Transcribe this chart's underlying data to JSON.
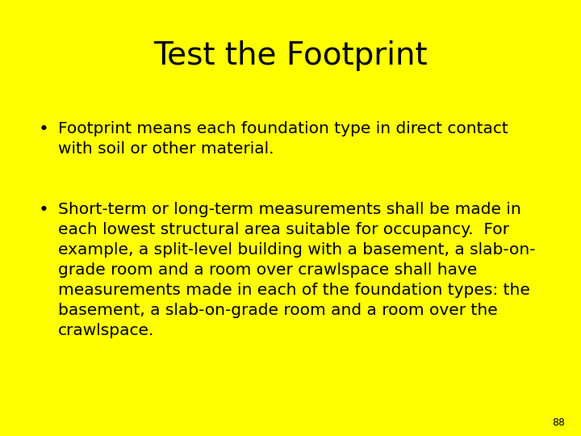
{
  "title": "Test the Footprint",
  "background_color": "#FFFF00",
  "text_color": "#000000",
  "title_fontsize": 28,
  "body_fontsize": 14.5,
  "page_number": "88",
  "bullet1_line1": "Footprint means each foundation type in direct contact",
  "bullet1_line2": "with soil or other material.",
  "bullet2_line1": "Short-term or long-term measurements shall be made in",
  "bullet2_line2": "each lowest structural area suitable for occupancy.  For",
  "bullet2_line3": "example, a split-level building with a basement, a slab-on-",
  "bullet2_line4": "grade room and a room over crawlspace shall have",
  "bullet2_line5": "measurements made in each of the foundation types: the",
  "bullet2_line6": "basement, a slab-on-grade room and a room over the",
  "bullet2_line7": "crawlspace.",
  "bullet_symbol": "•"
}
